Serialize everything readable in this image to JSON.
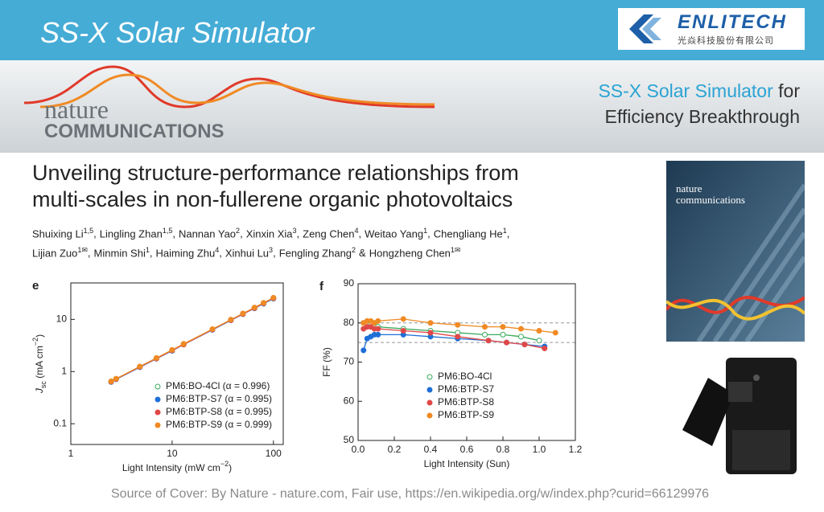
{
  "banner": {
    "title": "SS-X Solar Simulator"
  },
  "logo": {
    "name": "ENLITECH",
    "subtitle": "光焱科技股份有限公司"
  },
  "journal": {
    "line1": "nature",
    "line2": "COMMUNICATIONS"
  },
  "tagline": {
    "highlight": "SS-X Solar Simulator",
    "rest": "for",
    "line2": "Efficiency Breakthrough"
  },
  "article": {
    "title": [
      "Unveiling structure-performance relationships from",
      "multi-scales in non-fullerene organic photovoltaics"
    ],
    "authors": [
      [
        {
          "name": "Shuixing Li",
          "sup": "1,5",
          "sep": ","
        },
        {
          "name": "Lingling Zhan",
          "sup": "1,5",
          "sep": ","
        },
        {
          "name": "Nannan Yao",
          "sup": "2",
          "sep": ","
        },
        {
          "name": "Xinxin Xia",
          "sup": "3",
          "sep": ","
        },
        {
          "name": "Zeng Chen",
          "sup": "4",
          "sep": ","
        },
        {
          "name": "Weitao Yang",
          "sup": "1",
          "sep": ","
        },
        {
          "name": "Chengliang He",
          "sup": "1",
          "sep": ","
        }
      ],
      [
        {
          "name": "Lijian Zuo",
          "sup": "1✉",
          "sep": ","
        },
        {
          "name": "Minmin Shi",
          "sup": "1",
          "sep": ","
        },
        {
          "name": "Haiming Zhu",
          "sup": "4",
          "sep": ","
        },
        {
          "name": "Xinhui Lu",
          "sup": "3",
          "sep": ","
        },
        {
          "name": "Fengling Zhang",
          "sup": "2",
          "sep": "&"
        },
        {
          "name": "Hongzheng Chen",
          "sup": "1✉"
        }
      ]
    ]
  },
  "cover": {
    "line1": "nature",
    "line2": "communications"
  },
  "footer": "Source of Cover: By Nature - nature.com, Fair use, https://en.wikipedia.org/w/index.php?curid=66129976",
  "chart_data": [
    {
      "type": "scatter",
      "panel": "e",
      "xscale": "log",
      "yscale": "log",
      "x": [
        2.5,
        2.8,
        4.8,
        7,
        10,
        13,
        25,
        38,
        50,
        65,
        80,
        100
      ],
      "xlim": [
        1,
        125
      ],
      "ylim": [
        0.04,
        50
      ],
      "xticks": [
        1,
        10,
        100
      ],
      "yticks": [
        0.1,
        1,
        10
      ],
      "x_label": [
        {
          "text": "Light Intensity (mW cm"
        },
        {
          "text": "−2",
          "style": "sup"
        },
        {
          "text": ")"
        }
      ],
      "y_label": [
        {
          "text": "J",
          "style": "italic"
        },
        {
          "text": "sc",
          "style": "sub"
        },
        {
          "text": " (mA cm"
        },
        {
          "text": "−2",
          "style": "sup"
        },
        {
          "text": ")"
        }
      ],
      "series": [
        {
          "name": "PM6:BO-4Cl (α = 0.996)",
          "color": "#3aaa5c",
          "filled": false,
          "values": [
            0.64,
            0.72,
            1.24,
            1.8,
            2.57,
            3.35,
            6.45,
            9.8,
            12.9,
            16.7,
            20.6,
            25.8
          ]
        },
        {
          "name": "PM6:BTP-S7 (α = 0.995)",
          "color": "#1f6fd6",
          "filled": true,
          "values": [
            0.63,
            0.71,
            1.21,
            1.76,
            2.5,
            3.3,
            6.3,
            9.6,
            12.6,
            16.3,
            20,
            25
          ]
        },
        {
          "name": "PM6:BTP-S8 (α = 0.995)",
          "color": "#e04848",
          "filled": true,
          "values": [
            0.64,
            0.72,
            1.23,
            1.78,
            2.55,
            3.3,
            6.4,
            9.7,
            12.7,
            16.5,
            20.4,
            25.5
          ]
        },
        {
          "name": "PM6:BTP-S9 (α = 0.999)",
          "color": "#f08a24",
          "filled": true,
          "values": [
            0.65,
            0.73,
            1.25,
            1.82,
            2.6,
            3.4,
            6.5,
            9.9,
            13,
            16.9,
            20.8,
            26
          ]
        }
      ]
    },
    {
      "type": "scatter",
      "panel": "f",
      "xlim": [
        0,
        1.2
      ],
      "ylim": [
        50,
        90
      ],
      "xticks": [
        {
          "value": 0,
          "label": "0.0"
        },
        0.2,
        0.4,
        0.6,
        0.8,
        {
          "value": 1,
          "label": "1.0"
        },
        1.2
      ],
      "yticks": [
        50,
        60,
        70,
        80,
        90
      ],
      "hlines": [
        75,
        80
      ],
      "x_label": [
        {
          "text": "Light Intensity (Sun)"
        }
      ],
      "y_label": [
        {
          "text": "FF (%)"
        }
      ],
      "series": [
        {
          "name": "PM6:BO-4Cl",
          "color": "#3aaa5c",
          "filled": false,
          "x": [
            0.03,
            0.05,
            0.07,
            0.09,
            0.11,
            0.25,
            0.4,
            0.55,
            0.7,
            0.8,
            0.9,
            1.0
          ],
          "values": [
            80,
            80,
            79.5,
            79.5,
            79,
            78.5,
            78,
            77.5,
            77,
            77,
            76.5,
            75.5
          ]
        },
        {
          "name": "PM6:BTP-S7",
          "color": "#1f6fd6",
          "filled": true,
          "x": [
            0.03,
            0.05,
            0.07,
            0.09,
            0.11,
            0.25,
            0.4,
            0.55,
            0.72,
            0.82,
            0.92,
            1.03
          ],
          "values": [
            73,
            76,
            76.5,
            77,
            77,
            77,
            76.5,
            76,
            75.5,
            75,
            74.5,
            74
          ]
        },
        {
          "name": "PM6:BTP-S8",
          "color": "#e04848",
          "filled": true,
          "x": [
            0.03,
            0.05,
            0.07,
            0.09,
            0.11,
            0.25,
            0.4,
            0.55,
            0.72,
            0.82,
            0.92,
            1.03
          ],
          "values": [
            78.5,
            79,
            79,
            78.5,
            78.5,
            78,
            77.5,
            76.5,
            75.5,
            75,
            74.5,
            73.5
          ]
        },
        {
          "name": "PM6:BTP-S9",
          "color": "#f08a24",
          "filled": true,
          "x": [
            0.03,
            0.05,
            0.07,
            0.09,
            0.11,
            0.25,
            0.4,
            0.55,
            0.7,
            0.8,
            0.9,
            1.0,
            1.09
          ],
          "values": [
            80,
            80.5,
            80.5,
            80,
            80.5,
            81,
            80,
            79.5,
            79,
            79,
            78.5,
            78,
            77.5
          ]
        }
      ]
    }
  ]
}
